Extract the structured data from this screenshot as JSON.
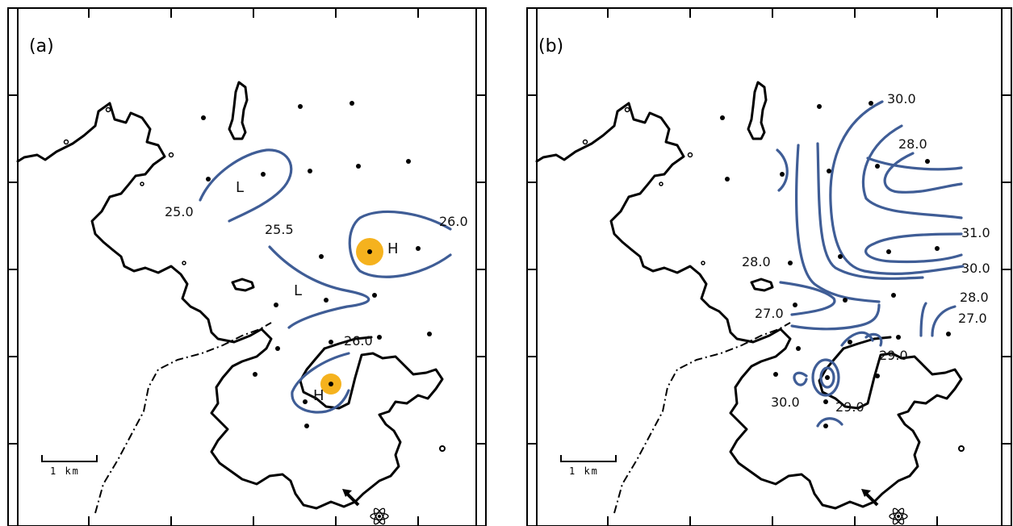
{
  "panel_a": {
    "label": "(a)",
    "isotherm_labels": [
      "25.0",
      "25.5",
      "26.0",
      "26.0"
    ],
    "zone_labels": [
      "L",
      "L",
      "H",
      "H"
    ],
    "scale_text": "1 km",
    "hotspot_color": "#f5b21e"
  },
  "panel_b": {
    "label": "(b)",
    "isotherm_labels": [
      "30.0",
      "28.0",
      "31.0",
      "30.0",
      "28.0",
      "28.0",
      "27.0",
      "27.0",
      "29.0",
      "30.0",
      "29.0"
    ],
    "scale_text": "1 km"
  },
  "colors": {
    "isotherm": "#3f5d96",
    "coast": "#000000"
  },
  "icons": [
    "wind-arrow-icon",
    "atom-icon"
  ]
}
